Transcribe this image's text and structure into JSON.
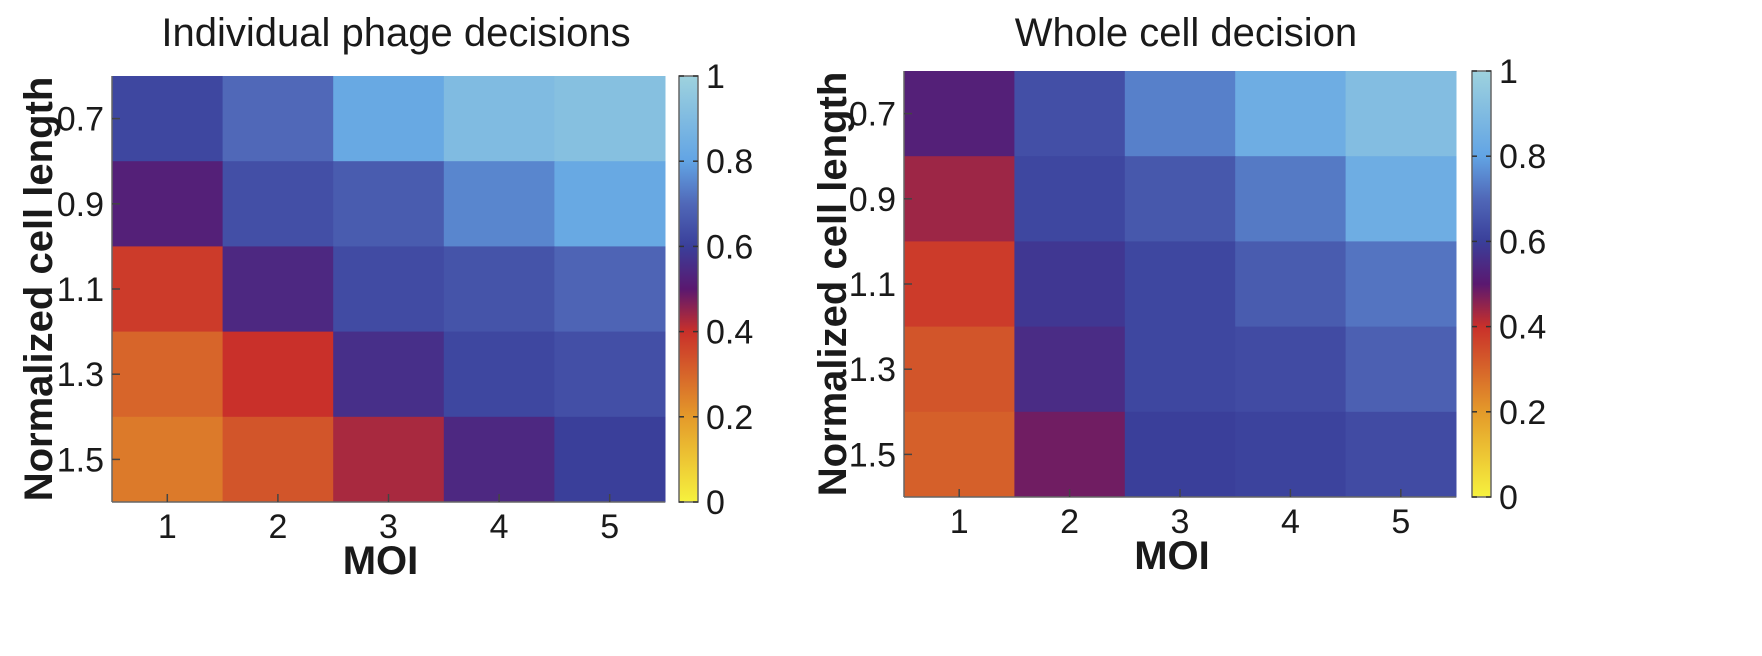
{
  "chart_data": [
    {
      "type": "heatmap",
      "title": "Individual phage decisions",
      "xlabel": "MOI",
      "ylabel": "Normalized cell length",
      "x": [
        "1",
        "2",
        "3",
        "4",
        "5"
      ],
      "y": [
        "0.7",
        "0.9",
        "1.1",
        "1.3",
        "1.5"
      ],
      "values": [
        [
          0.62,
          0.7,
          0.82,
          0.9,
          0.92
        ],
        [
          0.52,
          0.64,
          0.67,
          0.75,
          0.82
        ],
        [
          0.38,
          0.54,
          0.63,
          0.65,
          0.69
        ],
        [
          0.3,
          0.4,
          0.56,
          0.62,
          0.64
        ],
        [
          0.26,
          0.33,
          0.43,
          0.54,
          0.6
        ]
      ],
      "colorbar": {
        "min": 0,
        "max": 1,
        "ticks": [
          "0",
          "0.2",
          "0.4",
          "0.6",
          "0.8",
          "1"
        ]
      }
    },
    {
      "type": "heatmap",
      "title": "Whole cell decision",
      "xlabel": "MOI",
      "ylabel": "Normalized cell length",
      "x": [
        "1",
        "2",
        "3",
        "4",
        "5"
      ],
      "y": [
        "0.7",
        "0.9",
        "1.1",
        "1.3",
        "1.5"
      ],
      "values": [
        [
          0.52,
          0.64,
          0.74,
          0.84,
          0.91
        ],
        [
          0.44,
          0.62,
          0.66,
          0.73,
          0.84
        ],
        [
          0.38,
          0.58,
          0.62,
          0.67,
          0.72
        ],
        [
          0.33,
          0.55,
          0.62,
          0.63,
          0.68
        ],
        [
          0.31,
          0.48,
          0.6,
          0.61,
          0.63
        ]
      ],
      "colorbar": {
        "min": 0,
        "max": 1,
        "ticks": [
          "0",
          "0.2",
          "0.4",
          "0.6",
          "0.8",
          "1"
        ]
      }
    }
  ],
  "colormap": [
    [
      0.0,
      "#f6f23e"
    ],
    [
      0.2,
      "#e49a2a"
    ],
    [
      0.4,
      "#c9302a"
    ],
    [
      0.5,
      "#5a1870"
    ],
    [
      0.6,
      "#3a3f9a"
    ],
    [
      0.7,
      "#5068b8"
    ],
    [
      0.8,
      "#62a4e4"
    ],
    [
      1.0,
      "#9ed2de"
    ]
  ]
}
